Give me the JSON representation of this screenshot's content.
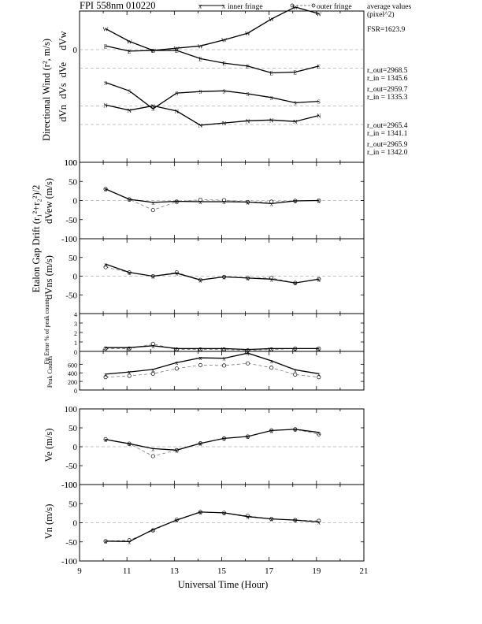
{
  "header": {
    "title": "FPI 558nm 010220",
    "legend_inner": "inner fringe",
    "legend_outer": "outer fringe",
    "avg_title_1": "average values",
    "avg_title_2": "(pixel^2)",
    "fsr": "FSR=1623.9"
  },
  "radii": [
    {
      "out": "r_out=2968.5",
      "in": "r_in = 1345.6"
    },
    {
      "out": "r_out=2959.7",
      "in": "r_in = 1335.3"
    },
    {
      "out": "r_out=2965.4",
      "in": "r_in = 1341.1"
    },
    {
      "out": "r_out=2965.9",
      "in": "r_in = 1342.0"
    }
  ],
  "chart_data": [
    {
      "type": "line",
      "ylabel": "Directional Wind (r², m/s)",
      "traces": [
        {
          "label": "dVw",
          "marker": "W",
          "x": [
            10.1,
            11.1,
            12.1,
            13.1,
            14.1,
            15.1,
            16.1,
            17.1,
            18.1,
            19.1
          ],
          "inner": [
            28,
            11,
            -1,
            2,
            5,
            13,
            22,
            41,
            57,
            48
          ],
          "outer": [
            28,
            11,
            -1,
            2,
            5,
            13,
            22,
            41,
            57,
            48
          ]
        },
        {
          "label": "dVe",
          "marker": "E",
          "x": [
            10.1,
            11.1,
            12.1,
            13.1,
            14.1,
            15.1,
            16.1,
            17.1,
            18.1,
            19.1
          ],
          "inner": [
            5,
            -2,
            -1,
            -1,
            -12,
            -18,
            -22,
            -31,
            -30,
            -22
          ],
          "outer": [
            5,
            -2,
            -1,
            -1,
            -12,
            -18,
            -22,
            -31,
            -30,
            -22
          ]
        },
        {
          "label": "dVs",
          "marker": "S",
          "x": [
            10.1,
            11.1,
            12.1,
            13.1,
            14.1,
            15.1,
            16.1,
            17.1,
            18.1,
            19.1
          ],
          "inner": [
            -44,
            -55,
            -79,
            -58,
            -56,
            -55,
            -59,
            -64,
            -71,
            -69
          ],
          "outer": [
            -44,
            -55,
            -79,
            -58,
            -56,
            -55,
            -59,
            -64,
            -71,
            -69
          ]
        },
        {
          "label": "dVn",
          "marker": "N",
          "x": [
            10.1,
            11.1,
            12.1,
            13.1,
            14.1,
            15.1,
            16.1,
            17.1,
            18.1,
            19.1
          ],
          "inner": [
            -74,
            -81,
            -75,
            -82,
            -101,
            -98,
            -95,
            -94,
            -96,
            -88
          ],
          "outer": [
            -74,
            -81,
            -75,
            -82,
            -101,
            -98,
            -95,
            -94,
            -96,
            -88
          ]
        }
      ]
    },
    {
      "type": "line",
      "ylabel_1": "Etalon Gap Drift (r₁²+r₂²)/2",
      "ylabel": "dVew (m/s)",
      "yticks": [
        -100,
        -50,
        0,
        50,
        100
      ],
      "x": [
        10.1,
        11.1,
        12.1,
        13.1,
        14.1,
        15.1,
        16.1,
        17.1,
        18.1,
        19.1
      ],
      "inner": [
        30,
        3,
        -5,
        -2,
        -3,
        -3,
        -4,
        -8,
        -1,
        0
      ],
      "outer": [
        30,
        3,
        -25,
        -3,
        2,
        1,
        -4,
        -3,
        -1,
        0
      ]
    },
    {
      "type": "line",
      "ylabel": "dVns (m/s)",
      "yticks": [
        -50,
        0,
        50
      ],
      "x": [
        10.1,
        11.1,
        12.1,
        13.1,
        14.1,
        15.1,
        16.1,
        17.1,
        18.1,
        19.1
      ],
      "inner": [
        32,
        10,
        0,
        8,
        -10,
        -2,
        -5,
        -8,
        -18,
        -8
      ],
      "outer": [
        24,
        10,
        0,
        10,
        -10,
        -2,
        -5,
        -5,
        -18,
        -8
      ]
    },
    {
      "type": "line",
      "ylabel": "Fit Error % of peak counts",
      "yticks": [
        0,
        1,
        2,
        3,
        4
      ],
      "x": [
        10.1,
        11.1,
        12.1,
        13.1,
        14.1,
        15.1,
        16.1,
        17.1,
        18.1,
        19.1
      ],
      "inner": [
        0.4,
        0.4,
        0.6,
        0.3,
        0.3,
        0.3,
        0.2,
        0.3,
        0.3,
        0.3
      ],
      "outer": [
        0.3,
        0.3,
        0.8,
        0.2,
        0.2,
        0.2,
        0.1,
        0.2,
        0.3,
        0.3
      ]
    },
    {
      "type": "line",
      "ylabel": "Peak Counts",
      "yticks": [
        0,
        200,
        400,
        600
      ],
      "x": [
        10.1,
        11.1,
        12.1,
        13.1,
        14.1,
        15.1,
        16.1,
        17.1,
        18.1,
        19.1
      ],
      "inner": [
        370,
        420,
        480,
        640,
        750,
        740,
        860,
        680,
        470,
        380
      ],
      "outer": [
        300,
        330,
        380,
        500,
        580,
        570,
        620,
        520,
        360,
        300
      ]
    },
    {
      "type": "line",
      "ylabel": "Ve (m/s)",
      "yticks": [
        -100,
        -50,
        0,
        50,
        100
      ],
      "x": [
        10.1,
        11.1,
        12.1,
        13.1,
        14.1,
        15.1,
        16.1,
        17.1,
        18.1,
        19.1
      ],
      "inner": [
        19,
        8,
        -5,
        -9,
        9,
        22,
        27,
        43,
        46,
        38
      ],
      "outer": [
        20,
        8,
        -25,
        -9,
        9,
        22,
        27,
        43,
        46,
        33
      ]
    },
    {
      "type": "line",
      "ylabel": "Vn (m/s)",
      "yticks": [
        -100,
        -50,
        0,
        50,
        100
      ],
      "xticks": [
        9,
        11,
        13,
        15,
        17,
        19,
        21
      ],
      "xlabel": "Universal Time (Hour)",
      "x": [
        10.1,
        11.1,
        12.1,
        13.1,
        14.1,
        15.1,
        16.1,
        17.1,
        18.1,
        19.1
      ],
      "inner": [
        -48,
        -49,
        -18,
        7,
        28,
        26,
        16,
        10,
        7,
        2
      ],
      "outer": [
        -48,
        -46,
        -20,
        8,
        28,
        26,
        18,
        10,
        7,
        5
      ]
    }
  ]
}
